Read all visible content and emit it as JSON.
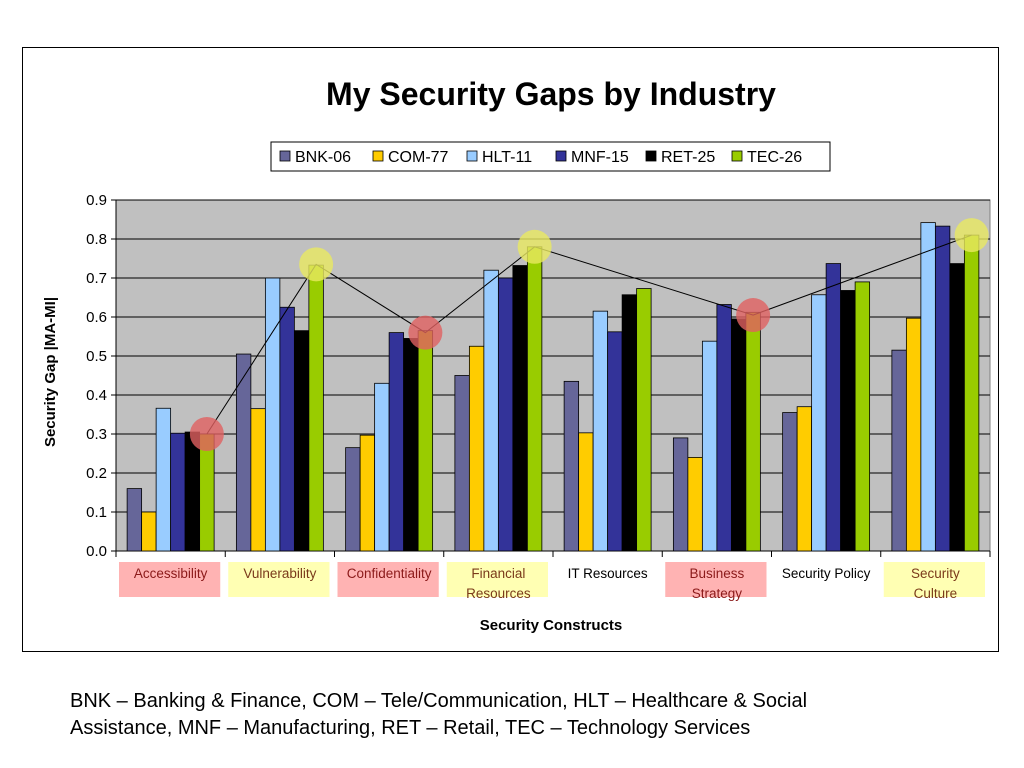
{
  "chart_data": {
    "type": "bar",
    "title": "My Security Gaps by Industry",
    "xlabel": "Security Constructs",
    "ylabel": "Security Gap |MA-MI|",
    "ylim": [
      0,
      0.9
    ],
    "yticks": [
      "0.0",
      "0.1",
      "0.2",
      "0.3",
      "0.4",
      "0.5",
      "0.6",
      "0.7",
      "0.8",
      "0.9"
    ],
    "grid": true,
    "legend_position": "top-center",
    "categories": [
      {
        "lines": [
          "Accessibility"
        ],
        "highlight": "red"
      },
      {
        "lines": [
          "Vulnerability"
        ],
        "highlight": "yellow"
      },
      {
        "lines": [
          "Confidentiality"
        ],
        "highlight": "red"
      },
      {
        "lines": [
          "Financial",
          "Resources"
        ],
        "highlight": "yellow"
      },
      {
        "lines": [
          "IT Resources"
        ],
        "highlight": "none"
      },
      {
        "lines": [
          "Business",
          "Strategy"
        ],
        "highlight": "red"
      },
      {
        "lines": [
          "Security Policy"
        ],
        "highlight": "none"
      },
      {
        "lines": [
          "Security",
          "Culture"
        ],
        "highlight": "yellow"
      }
    ],
    "series": [
      {
        "name": "BNK-06",
        "color": "#666699",
        "values": [
          0.16,
          0.505,
          0.265,
          0.45,
          0.435,
          0.29,
          0.355,
          0.515
        ]
      },
      {
        "name": "COM-77",
        "color": "#ffcc00",
        "values": [
          0.1,
          0.365,
          0.297,
          0.525,
          0.303,
          0.24,
          0.37,
          0.597
        ]
      },
      {
        "name": "HLT-11",
        "color": "#99ccff",
        "values": [
          0.366,
          0.7,
          0.43,
          0.72,
          0.615,
          0.538,
          0.657,
          0.842
        ]
      },
      {
        "name": "MNF-15",
        "color": "#333399",
        "values": [
          0.302,
          0.625,
          0.56,
          0.7,
          0.562,
          0.632,
          0.737,
          0.833
        ]
      },
      {
        "name": "RET-25",
        "color": "#000000",
        "values": [
          0.305,
          0.565,
          0.545,
          0.732,
          0.657,
          0.595,
          0.668,
          0.737
        ]
      },
      {
        "name": "TEC-26",
        "color": "#99cc00",
        "values": [
          0.3,
          0.733,
          0.565,
          0.78,
          0.673,
          0.612,
          0.69,
          0.81
        ]
      }
    ],
    "trend_line": {
      "series": "TEC-26",
      "color": "#000000"
    },
    "markers": [
      {
        "category": 0,
        "value": 0.3,
        "color": "red"
      },
      {
        "category": 1,
        "value": 0.735,
        "color": "yellow"
      },
      {
        "category": 2,
        "value": 0.56,
        "color": "red"
      },
      {
        "category": 3,
        "value": 0.78,
        "color": "yellow"
      },
      {
        "category": 5,
        "value": 0.605,
        "color": "red"
      },
      {
        "category": 7,
        "value": 0.81,
        "color": "yellow"
      }
    ],
    "colors": {
      "plot_background": "#c0c0c0",
      "highlight_red": "#ffb3b3",
      "highlight_yellow": "#ffffb3",
      "marker_red": "#e06060",
      "marker_yellow": "#e8e860"
    }
  },
  "footnote": {
    "line1": "BNK – Banking & Finance, COM – Tele/Communication, HLT – Healthcare & Social",
    "line2": "Assistance, MNF – Manufacturing, RET – Retail, TEC – Technology Services"
  }
}
